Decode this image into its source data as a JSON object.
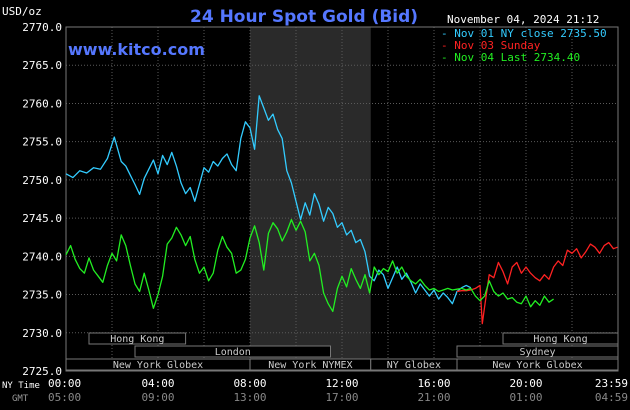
{
  "chart_data": {
    "type": "line",
    "title": "24 Hour Spot Gold (Bid)",
    "source": "www.kitco.com",
    "timestamp": "November 04, 2024 21:12",
    "ylabel": "USD/oz",
    "ylim": [
      2725.0,
      2770.0
    ],
    "y_ticks": [
      "2725.0",
      "2730.0",
      "2735.0",
      "2740.0",
      "2745.0",
      "2750.0",
      "2755.0",
      "2760.0",
      "2765.0",
      "2770.0"
    ],
    "x_tick_labels": [
      "00:00",
      "04:00",
      "08:00",
      "12:00",
      "16:00",
      "20:00",
      "23:59"
    ],
    "x_tick_labels_gmt": [
      "05:00",
      "09:00",
      "13:00",
      "17:00",
      "21:00",
      "01:00",
      "04:59"
    ],
    "time_zone_labels": [
      "NY Time",
      "GMT"
    ],
    "grid": true,
    "legend_position": "top-right",
    "colors": {
      "background": "#000000",
      "grid": "#5a5a5a",
      "title": "#5577ff",
      "axis_text": "#ffffff",
      "nyse_shade": "#2a2a2a"
    },
    "shaded_session": {
      "label": "New York NYMEX",
      "x_start_hour": 8.0,
      "x_end_hour": 13.25
    },
    "markets": [
      {
        "name": "Hong Kong",
        "row": 0,
        "start_hour": 1.0,
        "end_hour": 5.2
      },
      {
        "name": "Hong Kong",
        "row": 0,
        "start_hour": 19.0,
        "end_hour": 24.0
      },
      {
        "name": "London",
        "row": 1,
        "start_hour": 3.0,
        "end_hour": 11.5
      },
      {
        "name": "Sydney",
        "row": 1,
        "start_hour": 17.0,
        "end_hour": 24.0
      },
      {
        "name": "New York Globex",
        "row": 2,
        "start_hour": 0.0,
        "end_hour": 8.0
      },
      {
        "name": "New York NYMEX",
        "row": 2,
        "start_hour": 8.0,
        "end_hour": 13.25
      },
      {
        "name": "NY Globex",
        "row": 2,
        "start_hour": 13.25,
        "end_hour": 17.0
      },
      {
        "name": "New York Globex",
        "row": 2,
        "start_hour": 17.0,
        "end_hour": 24.0
      }
    ],
    "series": [
      {
        "name": "Nov 01 NY close 2735.50",
        "color": "#33ccff",
        "x": [
          0.0,
          0.3,
          0.6,
          0.9,
          1.2,
          1.5,
          1.8,
          2.1,
          2.4,
          2.6,
          2.8,
          3.0,
          3.2,
          3.4,
          3.6,
          3.8,
          4.0,
          4.2,
          4.4,
          4.6,
          4.8,
          5.0,
          5.2,
          5.4,
          5.6,
          5.8,
          6.0,
          6.2,
          6.4,
          6.6,
          6.8,
          7.0,
          7.2,
          7.4,
          7.6,
          7.8,
          8.0,
          8.2,
          8.4,
          8.6,
          8.8,
          9.0,
          9.2,
          9.4,
          9.6,
          9.8,
          10.0,
          10.2,
          10.4,
          10.6,
          10.8,
          11.0,
          11.2,
          11.4,
          11.6,
          11.8,
          12.0,
          12.2,
          12.4,
          12.6,
          12.8,
          13.0,
          13.2,
          13.4,
          13.6,
          13.8,
          14.0,
          14.2,
          14.4,
          14.6,
          14.8,
          15.0,
          15.2,
          15.4,
          15.6,
          15.8,
          16.0,
          16.2,
          16.4,
          16.6,
          16.8,
          17.0,
          17.2,
          17.4,
          17.6
        ],
        "y": [
          2750.8,
          2750.3,
          2751.2,
          2750.9,
          2751.6,
          2751.4,
          2752.8,
          2755.6,
          2752.4,
          2751.8,
          2750.6,
          2749.4,
          2748.1,
          2750.2,
          2751.4,
          2752.6,
          2750.8,
          2753.2,
          2752.0,
          2753.6,
          2751.8,
          2749.6,
          2748.2,
          2749.0,
          2747.2,
          2749.4,
          2751.6,
          2751.0,
          2752.4,
          2751.8,
          2752.8,
          2753.4,
          2752.0,
          2751.2,
          2755.4,
          2757.6,
          2756.8,
          2754.0,
          2761.0,
          2759.4,
          2757.8,
          2758.6,
          2756.6,
          2755.4,
          2751.2,
          2749.6,
          2747.2,
          2744.8,
          2747.0,
          2745.4,
          2748.2,
          2746.8,
          2744.6,
          2746.4,
          2745.6,
          2743.8,
          2744.4,
          2742.8,
          2743.4,
          2741.8,
          2742.2,
          2740.6,
          2737.4,
          2736.8,
          2738.2,
          2737.6,
          2735.8,
          2737.2,
          2738.6,
          2737.0,
          2737.8,
          2736.6,
          2735.2,
          2736.4,
          2735.6,
          2734.8,
          2735.6,
          2734.4,
          2735.2,
          2734.6,
          2733.8,
          2735.4,
          2735.9,
          2736.2,
          2735.9
        ]
      },
      {
        "name": "Nov 03 Sunday",
        "color": "#ff2222",
        "x": [
          17.0,
          17.2,
          17.4,
          17.6,
          17.8,
          18.0,
          18.1,
          18.2,
          18.4,
          18.6,
          18.8,
          19.0,
          19.2,
          19.4,
          19.6,
          19.8,
          20.0,
          20.2,
          20.4,
          20.6,
          20.8,
          21.0,
          21.2,
          21.4,
          21.6,
          21.8,
          22.0,
          22.2,
          22.4,
          22.6,
          22.8,
          23.0,
          23.2,
          23.4,
          23.6,
          23.8,
          23.98
        ],
        "y": [
          2735.4,
          2735.5,
          2735.5,
          2735.6,
          2735.8,
          2736.2,
          2731.2,
          2733.4,
          2737.6,
          2737.2,
          2739.2,
          2738.0,
          2736.4,
          2738.6,
          2739.2,
          2737.8,
          2738.6,
          2737.8,
          2737.2,
          2736.8,
          2737.6,
          2737.0,
          2738.6,
          2739.4,
          2738.8,
          2740.8,
          2740.4,
          2741.0,
          2739.8,
          2740.6,
          2741.6,
          2741.2,
          2740.4,
          2741.4,
          2741.8,
          2741.0,
          2741.2
        ]
      },
      {
        "name": "Nov 04 Last 2734.40",
        "color": "#22ee22",
        "x": [
          0.0,
          0.2,
          0.4,
          0.6,
          0.8,
          1.0,
          1.2,
          1.4,
          1.6,
          1.8,
          2.0,
          2.2,
          2.4,
          2.6,
          2.8,
          3.0,
          3.2,
          3.4,
          3.6,
          3.8,
          4.0,
          4.2,
          4.4,
          4.6,
          4.8,
          5.0,
          5.2,
          5.4,
          5.6,
          5.8,
          6.0,
          6.2,
          6.4,
          6.6,
          6.8,
          7.0,
          7.2,
          7.4,
          7.6,
          7.8,
          8.0,
          8.2,
          8.4,
          8.6,
          8.8,
          9.0,
          9.2,
          9.4,
          9.6,
          9.8,
          10.0,
          10.2,
          10.4,
          10.6,
          10.8,
          11.0,
          11.2,
          11.4,
          11.6,
          11.8,
          12.0,
          12.2,
          12.4,
          12.6,
          12.8,
          13.0,
          13.2,
          13.4,
          13.6,
          13.8,
          14.0,
          14.2,
          14.4,
          14.6,
          14.8,
          15.0,
          15.2,
          15.4,
          15.6,
          15.8,
          16.0,
          16.2,
          16.4,
          16.6,
          16.8,
          17.0,
          17.2,
          17.4,
          17.6,
          17.8,
          18.0,
          18.2,
          18.4,
          18.6,
          18.8,
          19.0,
          19.2,
          19.4,
          19.6,
          19.8,
          20.0,
          20.2,
          20.4,
          20.6,
          20.8,
          21.0,
          21.2
        ],
        "y": [
          2740.2,
          2741.4,
          2739.6,
          2738.4,
          2737.8,
          2739.8,
          2738.2,
          2737.4,
          2736.6,
          2738.8,
          2740.4,
          2739.4,
          2742.8,
          2741.4,
          2738.8,
          2736.4,
          2735.4,
          2737.8,
          2735.6,
          2733.2,
          2735.0,
          2737.4,
          2741.6,
          2742.4,
          2743.8,
          2742.8,
          2741.4,
          2742.6,
          2739.6,
          2737.8,
          2738.6,
          2736.8,
          2737.8,
          2740.8,
          2742.6,
          2741.2,
          2740.4,
          2737.8,
          2738.2,
          2739.6,
          2742.4,
          2744.0,
          2741.8,
          2738.2,
          2743.0,
          2744.4,
          2743.6,
          2742.0,
          2743.2,
          2744.8,
          2743.4,
          2744.6,
          2743.2,
          2739.4,
          2740.4,
          2738.8,
          2735.2,
          2733.8,
          2732.8,
          2735.8,
          2737.4,
          2736.0,
          2738.4,
          2737.0,
          2735.8,
          2737.6,
          2735.2,
          2738.6,
          2737.6,
          2738.4,
          2738.0,
          2739.4,
          2737.8,
          2738.6,
          2737.4,
          2736.8,
          2736.4,
          2737.0,
          2736.2,
          2735.6,
          2735.8,
          2735.4,
          2735.6,
          2735.8,
          2735.6,
          2735.7,
          2735.8,
          2735.6,
          2735.8,
          2734.8,
          2734.2,
          2734.8,
          2736.8,
          2735.4,
          2734.8,
          2735.2,
          2734.4,
          2734.6,
          2734.0,
          2733.8,
          2734.8,
          2733.4,
          2734.2,
          2733.6,
          2734.8,
          2734.0,
          2734.4
        ]
      }
    ]
  }
}
